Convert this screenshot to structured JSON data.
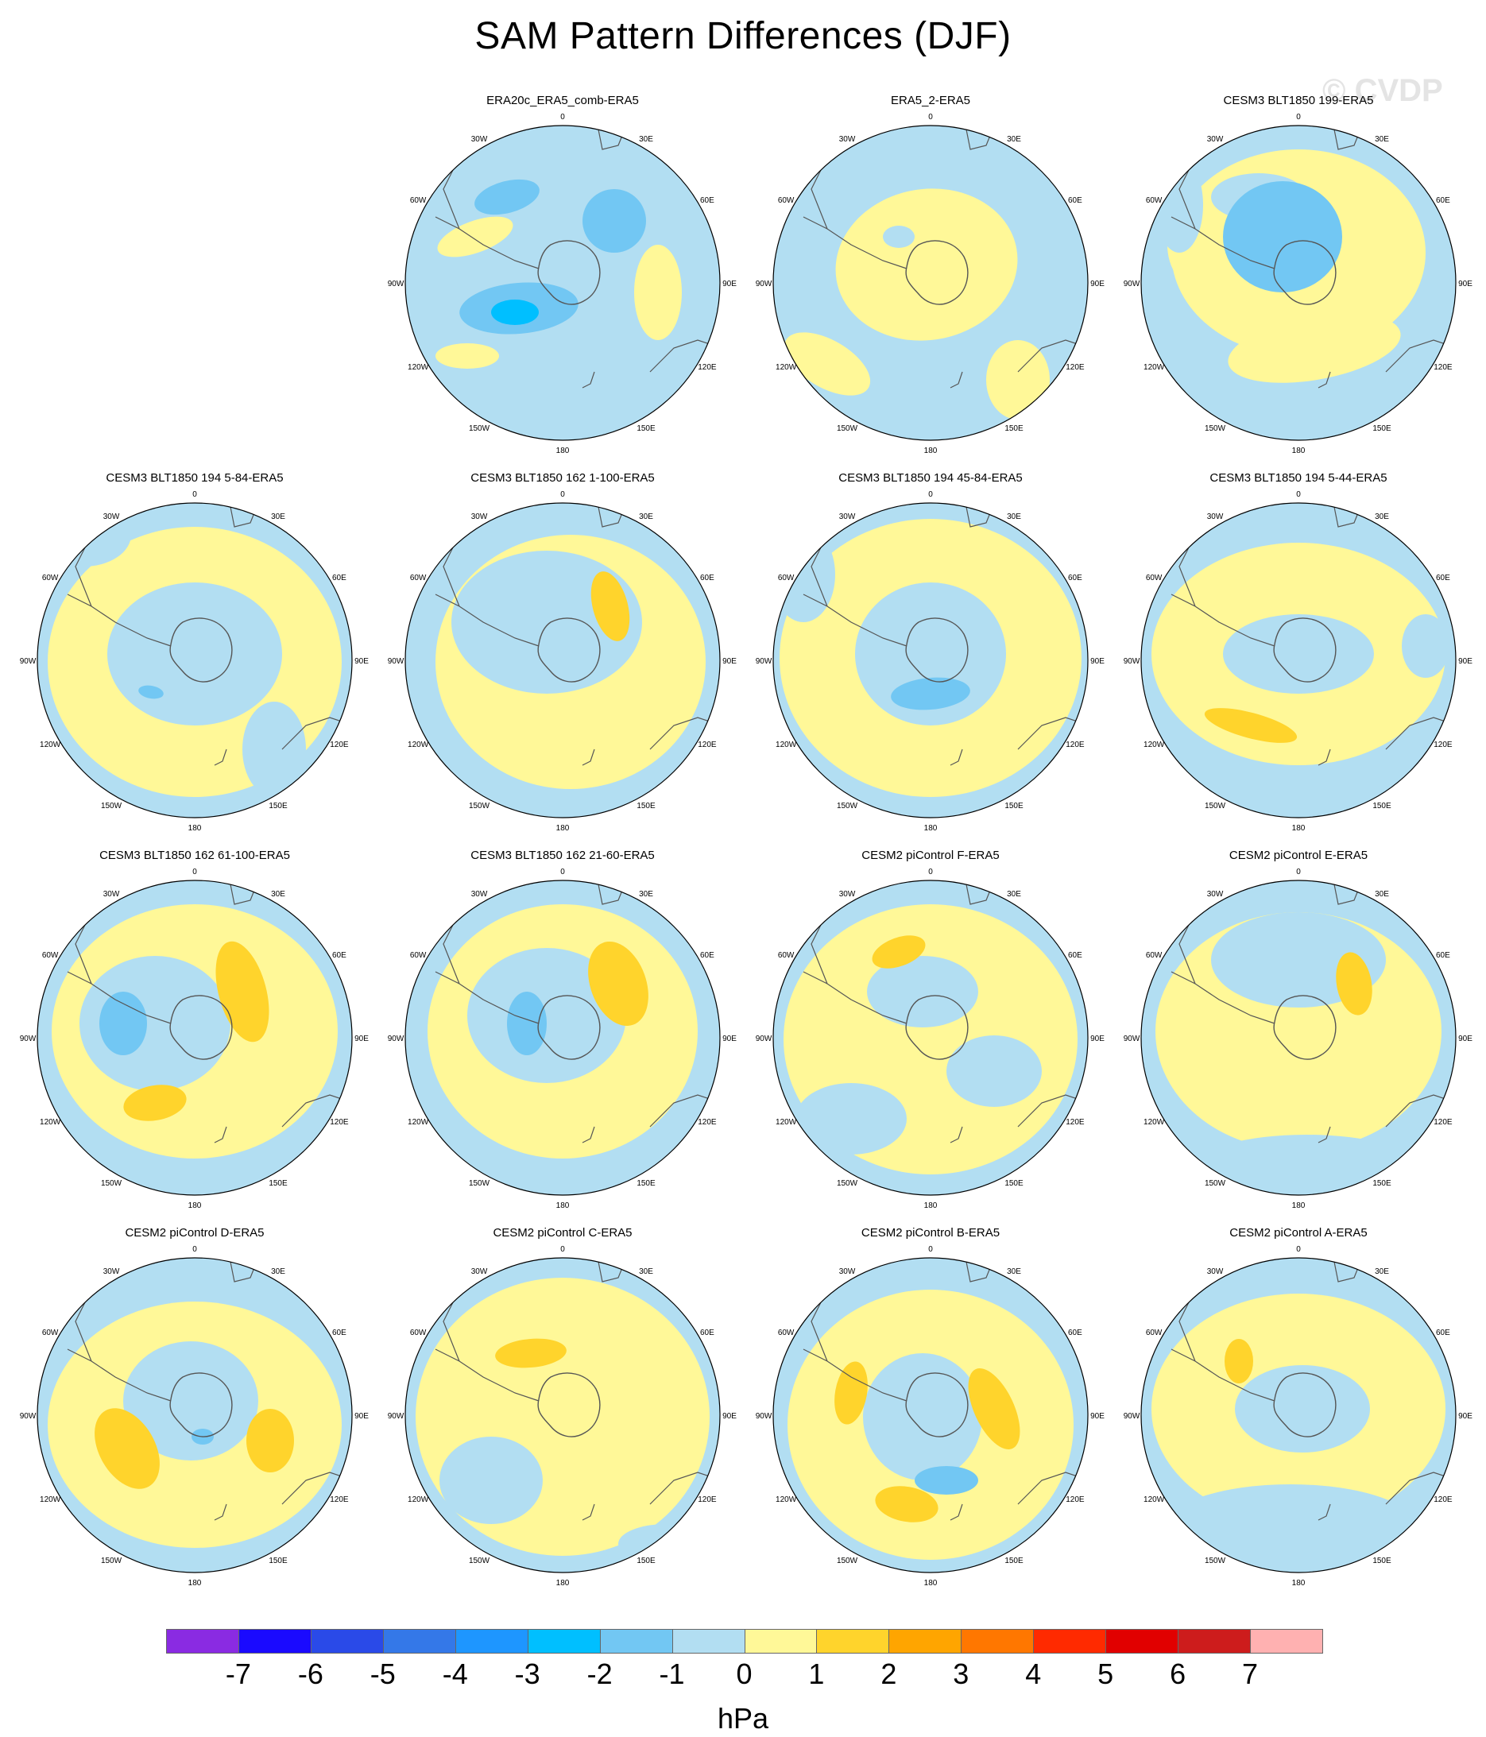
{
  "title": "SAM Pattern Differences (DJF)",
  "watermark": "© CVDP",
  "colors": {
    "neg1": "#b2def2",
    "pos1": "#fff898",
    "pos2": "#ffd42c",
    "neg2": "#72c7f3",
    "neg3": "#00bfff",
    "coast": "#555555"
  },
  "panels": [
    {
      "title": "ERA20c_ERA5_comb-ERA5"
    },
    {
      "title": "ERA5_2-ERA5"
    },
    {
      "title": "CESM3 BLT1850 199-ERA5"
    },
    {
      "title": "CESM3 BLT1850 194 5-84-ERA5"
    },
    {
      "title": "CESM3 BLT1850 162 1-100-ERA5"
    },
    {
      "title": "CESM3 BLT1850 194 45-84-ERA5"
    },
    {
      "title": "CESM3 BLT1850 194 5-44-ERA5"
    },
    {
      "title": "CESM3 BLT1850 162 61-100-ERA5"
    },
    {
      "title": "CESM3 BLT1850 162 21-60-ERA5"
    },
    {
      "title": "CESM2 piControl F-ERA5"
    },
    {
      "title": "CESM2 piControl E-ERA5"
    },
    {
      "title": "CESM2 piControl D-ERA5"
    },
    {
      "title": "CESM2 piControl C-ERA5"
    },
    {
      "title": "CESM2 piControl B-ERA5"
    },
    {
      "title": "CESM2 piControl A-ERA5"
    }
  ],
  "lon_labels": [
    "0",
    "30E",
    "60E",
    "90E",
    "120E",
    "150E",
    "180",
    "150W",
    "120W",
    "90W",
    "60W",
    "30W"
  ],
  "colorbar": {
    "colors": [
      "#8a2be2",
      "#1a0aff",
      "#2a4ae8",
      "#3478e8",
      "#1e96ff",
      "#00bfff",
      "#72c7f3",
      "#b2def2",
      "#fff898",
      "#ffd42c",
      "#ffa500",
      "#ff7700",
      "#ff2a00",
      "#e10000",
      "#cd1c1c",
      "#ffb1b1"
    ],
    "ticks": [
      "-7",
      "-6",
      "-5",
      "-4",
      "-3",
      "-2",
      "-1",
      "0",
      "1",
      "2",
      "3",
      "4",
      "5",
      "6",
      "7"
    ],
    "units": "hPa"
  }
}
